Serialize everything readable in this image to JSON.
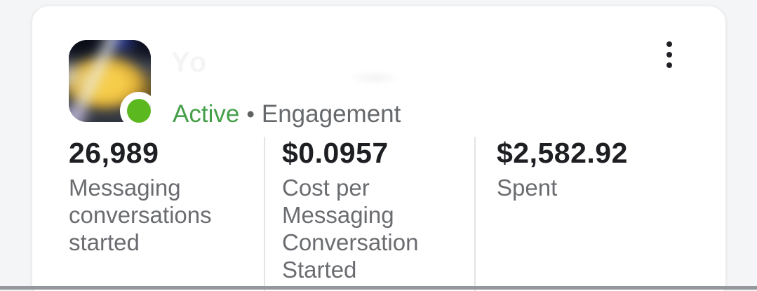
{
  "card": {
    "header": {
      "thumbnail": "blurred-campaign-image",
      "ghost_text": "Yo",
      "status": {
        "label": "Active",
        "separator": "•",
        "category": "Engagement"
      },
      "menu_icon": "kebab-menu"
    },
    "metrics": [
      {
        "value": "26,989",
        "label": "Messaging conversations started"
      },
      {
        "value": "$0.0957",
        "label": "Cost per Messaging Conversation Started"
      },
      {
        "value": "$2,582.92",
        "label": "Spent"
      }
    ],
    "colors": {
      "status_dot_green": "#5bb91f",
      "active_text_green": "#45a049",
      "value_text": "#1e1f23",
      "label_text": "#6a6c70",
      "divider": "#e4e4e4"
    }
  }
}
